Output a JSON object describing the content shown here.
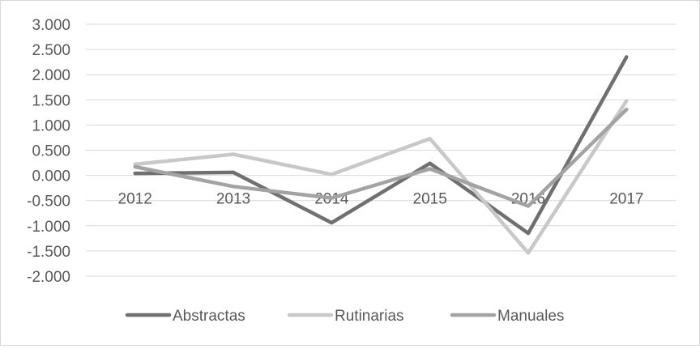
{
  "chart_data": {
    "type": "line",
    "title": "",
    "xlabel": "",
    "ylabel": "",
    "categories": [
      "2012",
      "2013",
      "2014",
      "2015",
      "2016",
      "2017"
    ],
    "yticks": [
      "3.000",
      "2.500",
      "2.000",
      "1.500",
      "1.000",
      "0.500",
      "0.000",
      "-0.500",
      "-1.000",
      "-1.500",
      "-2.000"
    ],
    "ytick_values": [
      3.0,
      2.5,
      2.0,
      1.5,
      1.0,
      0.5,
      0.0,
      -0.5,
      -1.0,
      -1.5,
      -2.0
    ],
    "ylim": [
      -2.0,
      3.0
    ],
    "grid": true,
    "legend_position": "bottom",
    "series": [
      {
        "name": "Abstractas",
        "color": "#707070",
        "values": [
          0.04,
          0.06,
          -0.94,
          0.24,
          -1.15,
          2.35
        ]
      },
      {
        "name": "Rutinarias",
        "color": "#c8c8c8",
        "values": [
          0.22,
          0.42,
          0.02,
          0.73,
          -1.54,
          1.48
        ]
      },
      {
        "name": "Manuales",
        "color": "#a3a3a3",
        "values": [
          0.17,
          -0.22,
          -0.45,
          0.13,
          -0.61,
          1.31
        ]
      }
    ]
  }
}
